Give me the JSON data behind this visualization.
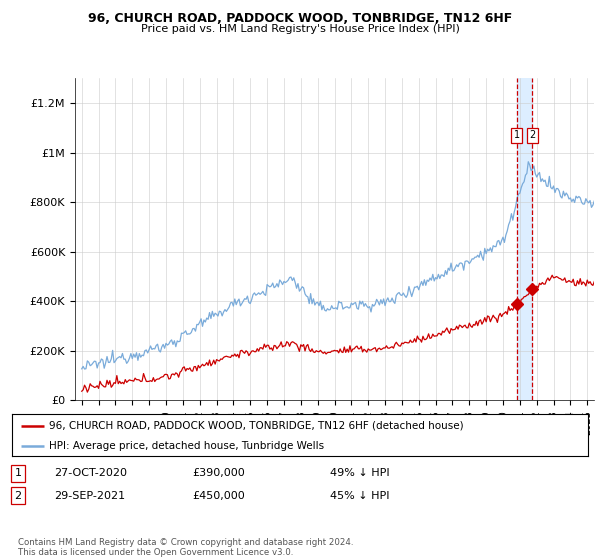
{
  "title": "96, CHURCH ROAD, PADDOCK WOOD, TONBRIDGE, TN12 6HF",
  "subtitle": "Price paid vs. HM Land Registry's House Price Index (HPI)",
  "legend_line1": "96, CHURCH ROAD, PADDOCK WOOD, TONBRIDGE, TN12 6HF (detached house)",
  "legend_line2": "HPI: Average price, detached house, Tunbridge Wells",
  "footnote": "Contains HM Land Registry data © Crown copyright and database right 2024.\nThis data is licensed under the Open Government Licence v3.0.",
  "transaction1_date": "27-OCT-2020",
  "transaction1_price": "£390,000",
  "transaction1_hpi": "49% ↓ HPI",
  "transaction2_date": "29-SEP-2021",
  "transaction2_price": "£450,000",
  "transaction2_hpi": "45% ↓ HPI",
  "hpi_color": "#7aabda",
  "paid_color": "#cc0000",
  "vline_color": "#cc0000",
  "shade_color": "#ddeeff",
  "ylim": [
    0,
    1300000
  ],
  "yticks": [
    0,
    200000,
    400000,
    600000,
    800000,
    1000000,
    1200000
  ],
  "ytick_labels": [
    "£0",
    "£200K",
    "£400K",
    "£600K",
    "£800K",
    "£1M",
    "£1.2M"
  ],
  "marker1_x": 2020.83,
  "marker1_y": 390000,
  "marker2_x": 2021.75,
  "marker2_y": 450000,
  "vline1_x": 2020.83,
  "vline2_x": 2021.75,
  "xmin": 1995,
  "xmax": 2025
}
